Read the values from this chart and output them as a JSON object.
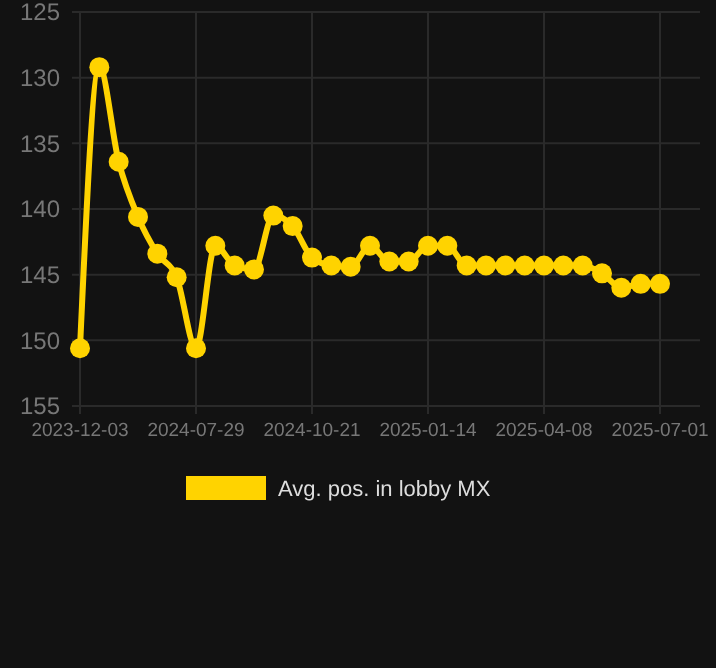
{
  "chart_data": {
    "type": "line",
    "categories": [
      "2023-12-03",
      null,
      null,
      null,
      null,
      null,
      "2024-07-29",
      null,
      null,
      null,
      null,
      null,
      "2024-10-21",
      null,
      null,
      null,
      null,
      null,
      "2025-01-14",
      null,
      null,
      null,
      null,
      null,
      "2025-04-08",
      null,
      null,
      null,
      null,
      null,
      "2025-07-01"
    ],
    "series": [
      {
        "name": "Avg. pos. in lobby MX",
        "color": "#ffd300",
        "values": [
          150.6,
          129.2,
          136.4,
          140.6,
          143.4,
          145.2,
          150.6,
          142.8,
          144.3,
          144.6,
          140.5,
          141.3,
          143.7,
          144.3,
          144.4,
          142.8,
          144.0,
          144.0,
          142.8,
          142.8,
          144.3,
          144.3,
          144.3,
          144.3,
          144.3,
          144.3,
          144.3,
          144.9,
          146.0,
          145.7,
          145.7
        ]
      }
    ],
    "ylim": [
      155,
      125
    ],
    "yticks": [
      125,
      130,
      135,
      140,
      145,
      150,
      155
    ],
    "grid": true,
    "legend": "bottom",
    "marker": "circle",
    "line_style": "solid"
  }
}
